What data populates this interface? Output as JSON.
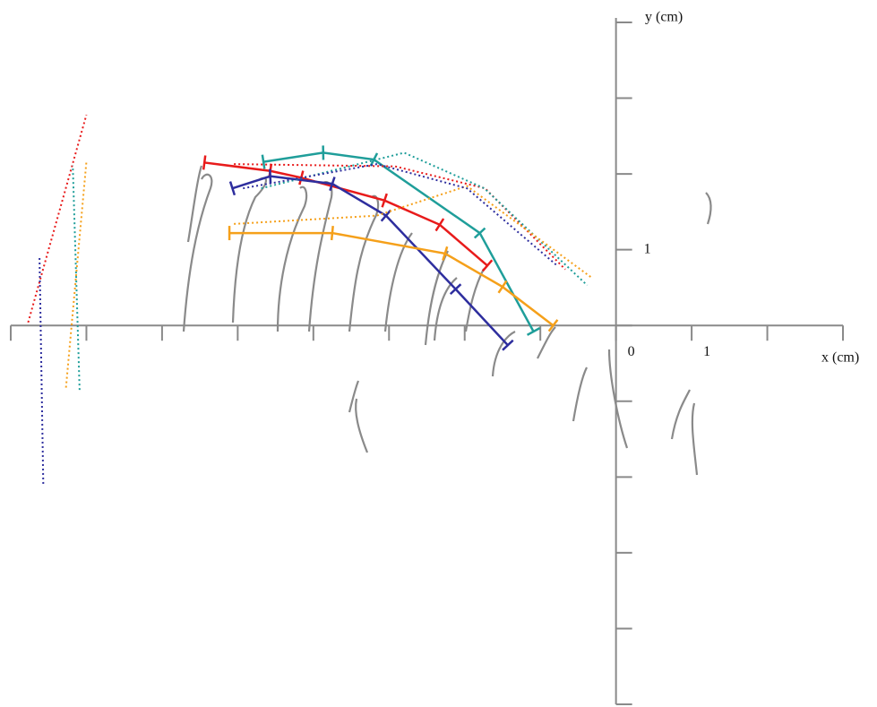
{
  "chart_data": {
    "type": "line",
    "x_label": "x (cm)",
    "y_label": "y (cm)",
    "xlim": [
      -8,
      3
    ],
    "ylim": [
      -5,
      4
    ],
    "xticks": [
      {
        "value": -8,
        "label": null
      },
      {
        "value": -7,
        "label": null
      },
      {
        "value": -6,
        "label": null
      },
      {
        "value": -5,
        "label": null
      },
      {
        "value": -4,
        "label": null
      },
      {
        "value": -3,
        "label": null
      },
      {
        "value": -2,
        "label": null
      },
      {
        "value": -1,
        "label": null
      },
      0,
      1,
      {
        "value": 2,
        "label": null
      },
      {
        "value": 3,
        "label": null
      }
    ],
    "yticks": [
      {
        "value": -5,
        "label": null
      },
      {
        "value": -4,
        "label": null
      },
      {
        "value": -3,
        "label": null
      },
      {
        "value": -2,
        "label": null
      },
      {
        "value": -1,
        "label": null
      },
      {
        "value": 0,
        "label": null
      },
      1,
      {
        "value": 2,
        "label": null
      },
      {
        "value": 3,
        "label": null
      },
      {
        "value": 4,
        "label": null
      }
    ],
    "series": [
      {
        "color": "#e81b1b",
        "dash": false,
        "x": [
          -5.44,
          -4.57,
          -4.16,
          -3.06,
          -2.33,
          -1.7
        ],
        "values": [
          2.15,
          2.04,
          1.95,
          1.65,
          1.33,
          0.79
        ]
      },
      {
        "color": "#2e2e9e",
        "dash": false,
        "x": [
          -5.07,
          -4.57,
          -3.75,
          -3.04,
          -2.12,
          -1.43
        ],
        "values": [
          1.81,
          1.97,
          1.87,
          1.45,
          0.48,
          -0.26
        ]
      },
      {
        "color": "#1f9e9a",
        "dash": false,
        "x": [
          -4.66,
          -3.87,
          -3.2,
          -1.8,
          -1.09
        ],
        "values": [
          2.16,
          2.28,
          2.19,
          1.22,
          -0.08
        ]
      },
      {
        "color": "#f5a01a",
        "dash": false,
        "x": [
          -5.11,
          -3.75,
          -2.26,
          -1.5,
          -0.83
        ],
        "values": [
          1.22,
          1.22,
          0.95,
          0.51,
          0.0
        ]
      },
      {
        "color": "#e81b1b",
        "dash": true,
        "x": [
          -5.05,
          -2.92,
          -1.73,
          -0.67
        ],
        "values": [
          2.13,
          2.1,
          1.81,
          0.74
        ]
      },
      {
        "color": "#1f9e9a",
        "dash": true,
        "x": [
          -4.69,
          -2.8,
          -1.74,
          -0.38
        ],
        "values": [
          1.81,
          2.28,
          1.81,
          0.53
        ]
      },
      {
        "color": "#f5a01a",
        "dash": true,
        "x": [
          -5.05,
          -3.16,
          -1.97,
          -0.32
        ],
        "values": [
          1.34,
          1.45,
          1.84,
          0.63
        ]
      },
      {
        "color": "#2e2e9e",
        "dash": true,
        "x": [
          -4.93,
          -3.16,
          -1.97,
          -0.79
        ],
        "values": [
          1.81,
          2.13,
          1.81,
          0.8
        ]
      },
      {
        "color": "#e81b1b",
        "dash": true,
        "x": [
          -7.77,
          -7.0
        ],
        "values": [
          0.04,
          2.78
        ]
      },
      {
        "color": "#f5a01a",
        "dash": true,
        "x": [
          -7.27,
          -7.0
        ],
        "values": [
          -0.82,
          2.16
        ]
      },
      {
        "color": "#1f9e9a",
        "dash": true,
        "x": [
          -7.09,
          -7.18
        ],
        "values": [
          -0.85,
          2.11
        ]
      },
      {
        "color": "#2e2e9e",
        "dash": true,
        "x": [
          -7.57,
          -7.62
        ],
        "values": [
          -2.09,
          0.92
        ]
      }
    ]
  }
}
